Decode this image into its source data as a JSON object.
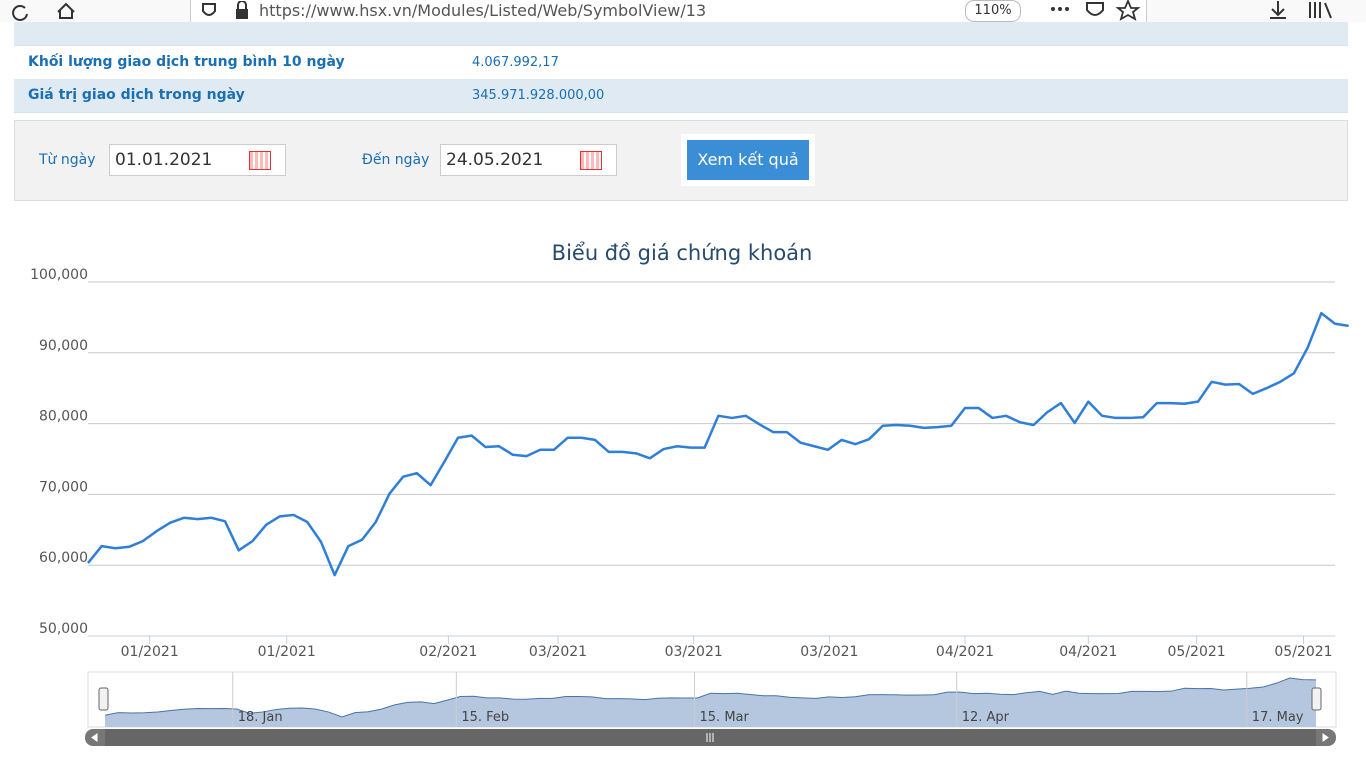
{
  "browser": {
    "url": "https://www.hsx.vn/Modules/Listed/Web/SymbolView/13",
    "zoom": "110%"
  },
  "table": {
    "rows": [
      [
        "Khối lượng giao dịch trung bình 10 ngày",
        "4.067.992,17"
      ],
      [
        "Giá trị giao dịch trong ngày",
        "345.971.928.000,00"
      ]
    ]
  },
  "form": {
    "from_label": "Từ ngày",
    "from_value": "01.01.2021",
    "to_label": "Đến ngày",
    "to_value": "24.05.2021",
    "button": "Xem kết quả"
  },
  "chart_data": {
    "type": "line",
    "title": "Biểu đồ giá chứng khoán",
    "series": [
      {
        "color": "#2f7ed8",
        "values": [
          60300,
          62700,
          62400,
          62600,
          63400,
          64800,
          66000,
          66700,
          66500,
          66700,
          66200,
          62100,
          63400,
          65700,
          66900,
          67100,
          66100,
          63300,
          58600,
          62700,
          63600,
          66100,
          70100,
          72500,
          73000,
          71300,
          74600,
          78000,
          78300,
          76700,
          76800,
          75600,
          75400,
          76300,
          76300,
          78000,
          78000,
          77700,
          76000,
          76000,
          75800,
          75100,
          76400,
          76800,
          76600,
          76600,
          81100,
          80800,
          81100,
          79900,
          78800,
          78800,
          77300,
          76800,
          76300,
          77700,
          77100,
          77800,
          79700,
          79800,
          79700,
          79400,
          79500,
          79700,
          82200,
          82200,
          80800,
          81100,
          80200,
          79800,
          81600,
          82900,
          80100,
          83100,
          81100,
          80800,
          80800,
          80900,
          82900,
          82900,
          82800,
          83100,
          85900,
          85500,
          85600,
          84200,
          85000,
          85900,
          87100,
          90700,
          95600,
          94100,
          93800
        ]
      }
    ],
    "xlim": [
      0,
      91
    ],
    "xticks": [
      {
        "value": 4.5,
        "label": "01/2021"
      },
      {
        "value": 14.5,
        "label": "01/2021"
      },
      {
        "value": 26.3,
        "label": "02/2021"
      },
      {
        "value": 34.3,
        "label": "03/2021"
      },
      {
        "value": 44.2,
        "label": "03/2021"
      },
      {
        "value": 54.1,
        "label": "03/2021"
      },
      {
        "value": 64,
        "label": "04/2021"
      },
      {
        "value": 73,
        "label": "04/2021"
      },
      {
        "value": 80.9,
        "label": "05/2021"
      },
      {
        "value": 88.7,
        "label": "05/2021"
      }
    ],
    "ylim": [
      50000,
      100000
    ],
    "yticks": [
      {
        "value": 50000,
        "label": "50,000"
      },
      {
        "value": 60000,
        "label": "60,000"
      },
      {
        "value": 70000,
        "label": "70,000"
      },
      {
        "value": 80000,
        "label": "80,000"
      },
      {
        "value": 90000,
        "label": "90,000"
      },
      {
        "value": 100000,
        "label": "100,000"
      }
    ],
    "grid": true,
    "navigator": {
      "xticks": [
        {
          "value": 9.6,
          "label": "18. Jan"
        },
        {
          "value": 26.4,
          "label": "15. Feb"
        },
        {
          "value": 44.3,
          "label": "15. Mar"
        },
        {
          "value": 64,
          "label": "12. Apr"
        },
        {
          "value": 85.8,
          "label": "17. May"
        }
      ]
    }
  }
}
